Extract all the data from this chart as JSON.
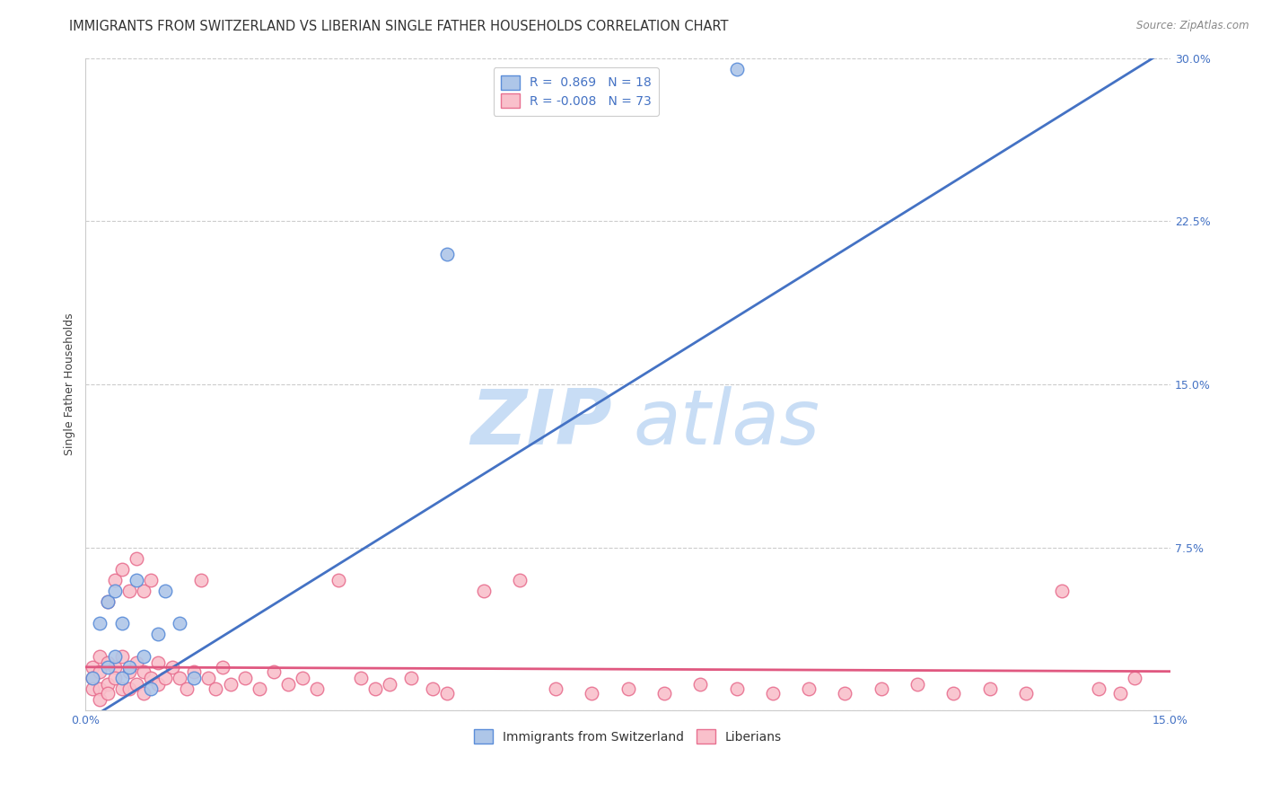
{
  "title": "IMMIGRANTS FROM SWITZERLAND VS LIBERIAN SINGLE FATHER HOUSEHOLDS CORRELATION CHART",
  "source": "Source: ZipAtlas.com",
  "ylabel": "Single Father Households",
  "xlim": [
    0.0,
    0.15
  ],
  "ylim": [
    0.0,
    0.3
  ],
  "xticks": [
    0.0,
    0.05,
    0.1,
    0.15
  ],
  "xticklabels": [
    "0.0%",
    "",
    "",
    "15.0%"
  ],
  "yticks": [
    0.0,
    0.075,
    0.15,
    0.225,
    0.3
  ],
  "yticklabels": [
    "",
    "7.5%",
    "15.0%",
    "22.5%",
    "30.0%"
  ],
  "grid_color": "#cccccc",
  "background_color": "#ffffff",
  "swiss_color": "#aec6e8",
  "swiss_edge_color": "#5b8dd9",
  "swiss_line_color": "#4472c4",
  "swiss_R": 0.869,
  "swiss_N": 18,
  "swiss_scatter_x": [
    0.001,
    0.002,
    0.003,
    0.003,
    0.004,
    0.004,
    0.005,
    0.005,
    0.006,
    0.007,
    0.008,
    0.009,
    0.01,
    0.011,
    0.013,
    0.015,
    0.05,
    0.09
  ],
  "swiss_scatter_y": [
    0.015,
    0.04,
    0.02,
    0.05,
    0.025,
    0.055,
    0.015,
    0.04,
    0.02,
    0.06,
    0.025,
    0.01,
    0.035,
    0.055,
    0.04,
    0.015,
    0.21,
    0.295
  ],
  "liberian_color": "#f9c0cb",
  "liberian_edge_color": "#e87090",
  "liberian_line_color": "#e05880",
  "liberian_R": -0.008,
  "liberian_N": 73,
  "liberian_scatter_x": [
    0.001,
    0.001,
    0.001,
    0.002,
    0.002,
    0.002,
    0.002,
    0.003,
    0.003,
    0.003,
    0.003,
    0.004,
    0.004,
    0.004,
    0.005,
    0.005,
    0.005,
    0.006,
    0.006,
    0.006,
    0.007,
    0.007,
    0.007,
    0.008,
    0.008,
    0.008,
    0.009,
    0.009,
    0.01,
    0.01,
    0.011,
    0.012,
    0.013,
    0.014,
    0.015,
    0.016,
    0.017,
    0.018,
    0.019,
    0.02,
    0.022,
    0.024,
    0.026,
    0.028,
    0.03,
    0.032,
    0.035,
    0.038,
    0.04,
    0.042,
    0.045,
    0.048,
    0.05,
    0.055,
    0.06,
    0.065,
    0.07,
    0.075,
    0.08,
    0.085,
    0.09,
    0.095,
    0.1,
    0.105,
    0.11,
    0.115,
    0.12,
    0.125,
    0.13,
    0.135,
    0.14,
    0.143,
    0.145
  ],
  "liberian_scatter_y": [
    0.02,
    0.015,
    0.01,
    0.025,
    0.018,
    0.01,
    0.005,
    0.022,
    0.012,
    0.008,
    0.05,
    0.02,
    0.015,
    0.06,
    0.025,
    0.01,
    0.065,
    0.018,
    0.01,
    0.055,
    0.022,
    0.012,
    0.07,
    0.055,
    0.018,
    0.008,
    0.015,
    0.06,
    0.022,
    0.012,
    0.015,
    0.02,
    0.015,
    0.01,
    0.018,
    0.06,
    0.015,
    0.01,
    0.02,
    0.012,
    0.015,
    0.01,
    0.018,
    0.012,
    0.015,
    0.01,
    0.06,
    0.015,
    0.01,
    0.012,
    0.015,
    0.01,
    0.008,
    0.055,
    0.06,
    0.01,
    0.008,
    0.01,
    0.008,
    0.012,
    0.01,
    0.008,
    0.01,
    0.008,
    0.01,
    0.012,
    0.008,
    0.01,
    0.008,
    0.055,
    0.01,
    0.008,
    0.015
  ],
  "swiss_line_x0": 0.0,
  "swiss_line_y0": -0.005,
  "swiss_line_x1": 0.15,
  "swiss_line_y1": 0.305,
  "liberian_line_x0": 0.0,
  "liberian_line_y0": 0.02,
  "liberian_line_x1": 0.15,
  "liberian_line_y1": 0.018,
  "legend_swiss_label": "Immigrants from Switzerland",
  "legend_liberian_label": "Liberians",
  "title_fontsize": 10.5,
  "axis_label_fontsize": 9,
  "tick_fontsize": 9,
  "legend_fontsize": 10,
  "source_fontsize": 8.5
}
